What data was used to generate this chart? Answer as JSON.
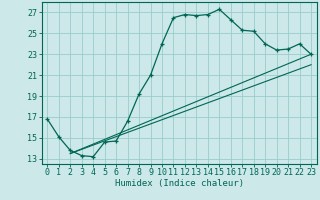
{
  "xlabel": "Humidex (Indice chaleur)",
  "bg_color": "#cce8e8",
  "grid_color": "#99cccc",
  "line_color": "#006655",
  "xlim": [
    -0.5,
    23.5
  ],
  "ylim": [
    12.5,
    28.0
  ],
  "yticks": [
    13,
    15,
    17,
    19,
    21,
    23,
    25,
    27
  ],
  "xticks": [
    0,
    1,
    2,
    3,
    4,
    5,
    6,
    7,
    8,
    9,
    10,
    11,
    12,
    13,
    14,
    15,
    16,
    17,
    18,
    19,
    20,
    21,
    22,
    23
  ],
  "main_curve_x": [
    0,
    1,
    2,
    3,
    4,
    5,
    6,
    7,
    8,
    9,
    10,
    11,
    12,
    13,
    14,
    15,
    16,
    17,
    18,
    19,
    20,
    21,
    22,
    23
  ],
  "main_curve_y": [
    16.8,
    15.1,
    13.8,
    13.3,
    13.2,
    14.6,
    14.7,
    16.6,
    19.2,
    21.0,
    24.0,
    26.5,
    26.8,
    26.7,
    26.8,
    27.3,
    26.3,
    25.3,
    25.2,
    24.0,
    23.4,
    23.5,
    24.0,
    23.0
  ],
  "line1_x": [
    2,
    23
  ],
  "line1_y": [
    13.5,
    23.0
  ],
  "line2_x": [
    2,
    23
  ],
  "line2_y": [
    13.5,
    22.0
  ],
  "xlabel_fontsize": 6.5,
  "tick_fontsize": 6.0
}
